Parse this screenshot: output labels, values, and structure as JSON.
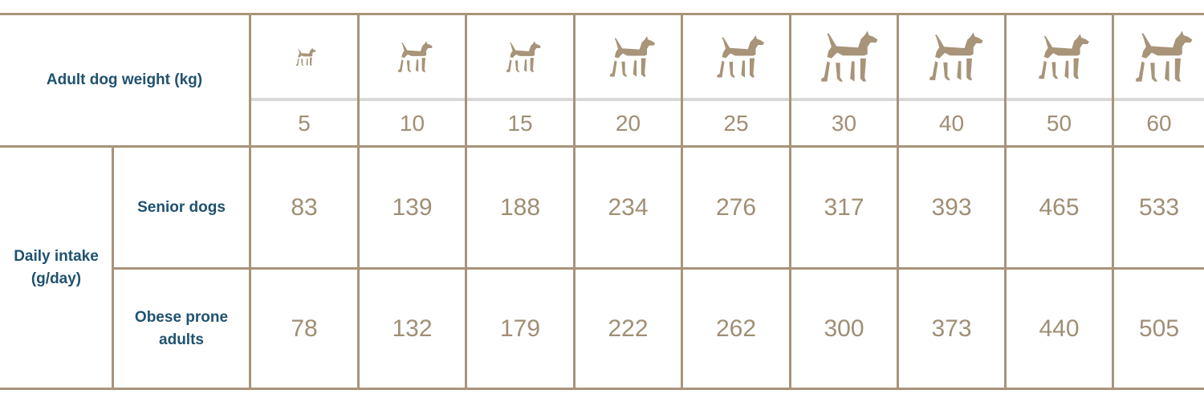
{
  "header": {
    "weight_label": "Adult dog weight (kg)"
  },
  "weights": [
    "5",
    "10",
    "15",
    "20",
    "25",
    "30",
    "40",
    "50",
    "60"
  ],
  "dog_icons": [
    "chihuahua-icon",
    "dachshund-icon",
    "terrier-icon",
    "bull-terrier-icon",
    "boxer-icon",
    "shepherd-icon",
    "schnauzer-icon",
    "pointer-icon",
    "great-dane-icon"
  ],
  "intake_label": "Daily intake (g/day)",
  "rows": [
    {
      "label": "Senior dogs",
      "values": [
        "83",
        "139",
        "188",
        "234",
        "276",
        "317",
        "393",
        "465",
        "533"
      ]
    },
    {
      "label": "Obese prone adults",
      "values": [
        "78",
        "132",
        "179",
        "222",
        "262",
        "300",
        "373",
        "440",
        "505"
      ]
    }
  ],
  "colors": {
    "border": "#a89479",
    "label_text": "#1f5270",
    "number_text": "#a08e74",
    "divider": "#d9d9d9"
  }
}
